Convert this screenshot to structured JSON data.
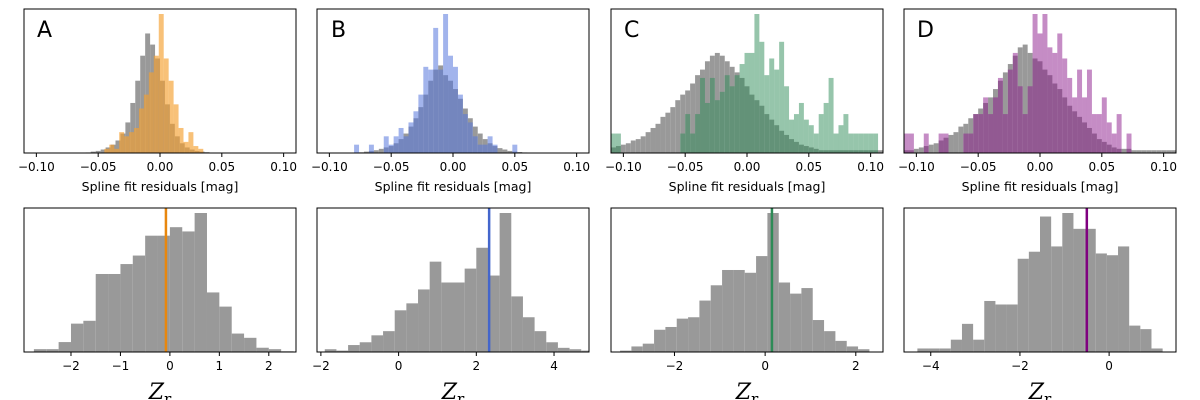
{
  "colors": {
    "gray": "#999999",
    "A": "#e8870e",
    "B": "#4466cc",
    "C": "#2e8b57",
    "D": "#800080"
  },
  "chart_data": [
    {
      "type": "bar",
      "panel": "A",
      "title": "",
      "xlabel": "Spline fit residuals [mag]",
      "ylabel": "",
      "xlim": [
        -0.11,
        0.11
      ],
      "xticks": [
        -0.1,
        -0.05,
        0.0,
        0.05,
        0.1
      ],
      "xticklabels": [
        "−0.10",
        "−0.05",
        "0.00",
        "0.05",
        "0.10"
      ],
      "series": [
        {
          "name": "",
          "color": "#999999",
          "opacity": 1.0,
          "bin_start": -0.06,
          "bin_width": 0.004,
          "values": [
            0.4,
            1,
            1.5,
            2.5,
            4,
            6,
            9,
            14,
            22,
            36,
            52,
            70,
            86,
            78,
            68,
            52,
            35,
            21,
            12,
            7,
            4,
            2.5,
            1.5,
            1,
            0.6,
            0.3,
            0.1,
            0.1,
            0.1,
            0.1
          ]
        },
        {
          "name": "",
          "color": "#f5a030",
          "opacity": 0.65,
          "bin_start": -0.045,
          "bin_width": 0.004,
          "values": [
            3,
            6,
            3,
            15,
            12,
            15,
            18,
            32,
            42,
            58,
            70,
            100,
            68,
            52,
            35,
            18,
            8,
            15,
            5,
            3
          ]
        }
      ]
    },
    {
      "type": "bar",
      "panel": "B",
      "title": "",
      "xlabel": "Spline fit residuals [mag]",
      "ylabel": "",
      "xlim": [
        -0.11,
        0.11
      ],
      "xticks": [
        -0.1,
        -0.05,
        0.0,
        0.05,
        0.1
      ],
      "xticklabels": [
        "−0.10",
        "−0.05",
        "0.00",
        "0.05",
        "0.10"
      ],
      "series": [
        {
          "name": "",
          "color": "#999999",
          "opacity": 1.0,
          "bin_start": -0.08,
          "bin_width": 0.004,
          "values": [
            0.3,
            0.5,
            1,
            1.5,
            2,
            3,
            4,
            5,
            7,
            10,
            14,
            19,
            25,
            33,
            42,
            52,
            60,
            63,
            56,
            52,
            46,
            39,
            32,
            25,
            19,
            14,
            10,
            7,
            5,
            3.5,
            2.5,
            1.5,
            1,
            0.7,
            0.4,
            0.3,
            0.2,
            0.2,
            0.1,
            0.1
          ]
        },
        {
          "name": "",
          "color": "#5577dd",
          "opacity": 0.55,
          "bin_start": -0.08,
          "bin_width": 0.004,
          "values": [
            6,
            0,
            0,
            6,
            0,
            0,
            12,
            6,
            12,
            18,
            12,
            22,
            30,
            42,
            62,
            60,
            90,
            60,
            100,
            70,
            62,
            42,
            28,
            22,
            12,
            6,
            6,
            12,
            6,
            0,
            0,
            0,
            6
          ]
        }
      ]
    },
    {
      "type": "bar",
      "panel": "C",
      "title": "",
      "xlabel": "Spline fit residuals [mag]",
      "ylabel": "",
      "xlim": [
        -0.11,
        0.11
      ],
      "xticks": [
        -0.1,
        -0.05,
        0.0,
        0.05,
        0.1
      ],
      "xticklabels": [
        "−0.10",
        "−0.05",
        "0.00",
        "0.05",
        "0.10"
      ],
      "series": [
        {
          "name": "",
          "color": "#999999",
          "opacity": 1.0,
          "bin_start": -0.11,
          "bin_width": 0.004,
          "values": [
            4,
            5,
            6,
            7,
            9,
            10,
            12,
            15,
            18,
            21,
            26,
            29,
            33,
            38,
            42,
            45,
            50,
            56,
            60,
            66,
            70,
            72,
            70,
            66,
            62,
            58,
            54,
            48,
            42,
            38,
            34,
            28,
            24,
            20,
            16,
            13,
            10,
            8,
            6,
            5,
            4,
            3,
            2,
            2,
            2,
            2,
            2,
            2,
            2,
            2,
            2,
            2,
            2,
            2,
            2
          ]
        },
        {
          "name": "",
          "color": "#2e8b57",
          "opacity": 0.5,
          "bin_start": -0.11,
          "bin_width": 0.004,
          "values": [
            14,
            14,
            0,
            0,
            0,
            0,
            0,
            0,
            0,
            0,
            0,
            0,
            0,
            0,
            14,
            28,
            14,
            28,
            54,
            36,
            54,
            38,
            44,
            56,
            48,
            56,
            64,
            72,
            72,
            100,
            80,
            56,
            68,
            60,
            80,
            48,
            24,
            28,
            36,
            24,
            20,
            14,
            28,
            36,
            54,
            14,
            20,
            28,
            14,
            14,
            14,
            14,
            14,
            14,
            0
          ]
        }
      ]
    },
    {
      "type": "bar",
      "panel": "D",
      "title": "",
      "xlabel": "Spline fit residuals [mag]",
      "ylabel": "",
      "xlim": [
        -0.11,
        0.11
      ],
      "xticks": [
        -0.1,
        -0.05,
        0.0,
        0.05,
        0.1
      ],
      "xticklabels": [
        "−0.10",
        "−0.05",
        "0.00",
        "0.05",
        "0.10"
      ],
      "series": [
        {
          "name": "",
          "color": "#999999",
          "opacity": 1.0,
          "bin_start": -0.11,
          "bin_width": 0.004,
          "values": [
            2,
            2,
            3,
            4,
            5,
            6,
            7,
            9,
            11,
            13,
            15,
            19,
            21,
            25,
            28,
            32,
            36,
            40,
            46,
            52,
            58,
            64,
            70,
            76,
            78,
            72,
            68,
            66,
            60,
            56,
            50,
            46,
            40,
            34,
            30,
            26,
            22,
            18,
            14,
            10,
            8,
            6,
            4,
            3,
            3,
            3,
            2,
            2,
            2,
            2,
            2,
            2,
            2,
            2,
            2
          ]
        },
        {
          "name": "",
          "color": "#8b1a8b",
          "opacity": 0.5,
          "bin_start": -0.11,
          "bin_width": 0.004,
          "values": [
            14,
            14,
            0,
            0,
            14,
            0,
            0,
            14,
            14,
            0,
            0,
            0,
            14,
            14,
            28,
            28,
            40,
            28,
            40,
            54,
            28,
            60,
            72,
            48,
            28,
            48,
            100,
            86,
            100,
            76,
            72,
            86,
            68,
            54,
            40,
            60,
            40,
            60,
            28,
            28,
            40,
            22,
            14,
            28,
            0,
            14,
            0,
            0,
            0,
            0,
            0,
            0,
            0,
            0,
            0
          ]
        }
      ]
    },
    {
      "type": "bar",
      "panel": "A-zr",
      "title": "",
      "xlabel": "Z_r",
      "ylabel": "",
      "xlim": [
        -2.95,
        2.55
      ],
      "xticks": [
        -2,
        -1,
        0,
        1,
        2
      ],
      "xticklabels": [
        "−2",
        "−1",
        "0",
        "1",
        "2"
      ],
      "vline": -0.08,
      "vline_color": "#e8870e",
      "series": [
        {
          "name": "",
          "color": "#999999",
          "opacity": 1.0,
          "bin_start": -2.75,
          "bin_width": 0.25,
          "values": [
            2,
            2,
            7,
            20,
            22,
            55,
            55,
            62,
            68,
            82,
            82,
            88,
            85,
            98,
            42,
            32,
            13,
            10,
            3,
            2,
            0.5
          ]
        }
      ]
    },
    {
      "type": "bar",
      "panel": "B-zr",
      "title": "",
      "xlabel": "Z_r",
      "ylabel": "",
      "xlim": [
        -2.1,
        4.9
      ],
      "xticks": [
        -2,
        0,
        2,
        4
      ],
      "xticklabels": [
        "−2",
        "0",
        "2",
        "4"
      ],
      "vline": 2.33,
      "vline_color": "#4466cc",
      "series": [
        {
          "name": "",
          "color": "#999999",
          "opacity": 1.0,
          "bin_start": -1.9,
          "bin_width": 0.3,
          "values": [
            2,
            1,
            5,
            7,
            12,
            15,
            30,
            35,
            45,
            65,
            50,
            50,
            60,
            75,
            55,
            100,
            40,
            25,
            15,
            7,
            3,
            2,
            1
          ]
        }
      ]
    },
    {
      "type": "bar",
      "panel": "C-zr",
      "title": "",
      "xlabel": "Z_r",
      "ylabel": "",
      "xlim": [
        -3.4,
        2.6
      ],
      "xticks": [
        -2,
        0,
        2
      ],
      "xticklabels": [
        "−2",
        "0",
        "2"
      ],
      "vline": 0.15,
      "vline_color": "#2e8b57",
      "series": [
        {
          "name": "",
          "color": "#999999",
          "opacity": 1.0,
          "bin_start": -3.2,
          "bin_width": 0.25,
          "values": [
            1,
            4,
            6,
            16,
            18,
            24,
            25,
            37,
            48,
            59,
            59,
            57,
            69,
            100,
            50,
            42,
            46,
            23,
            15,
            8,
            4,
            2
          ]
        }
      ]
    },
    {
      "type": "bar",
      "panel": "D-zr",
      "title": "",
      "xlabel": "Z_r",
      "ylabel": "",
      "xlim": [
        -4.6,
        1.5
      ],
      "xticks": [
        -4,
        -2,
        0
      ],
      "xticklabels": [
        "−4",
        "−2",
        "0"
      ],
      "vline": -0.5,
      "vline_color": "#800080",
      "series": [
        {
          "name": "",
          "color": "#999999",
          "opacity": 1.0,
          "bin_start": -4.3,
          "bin_width": 0.25,
          "values": [
            2,
            2,
            2,
            7,
            16,
            7,
            29,
            27,
            27,
            53,
            57,
            77,
            60,
            79,
            70,
            70,
            56,
            55,
            60,
            15,
            13,
            2
          ]
        }
      ]
    }
  ],
  "panel_letters": [
    "A",
    "B",
    "C",
    "D"
  ]
}
